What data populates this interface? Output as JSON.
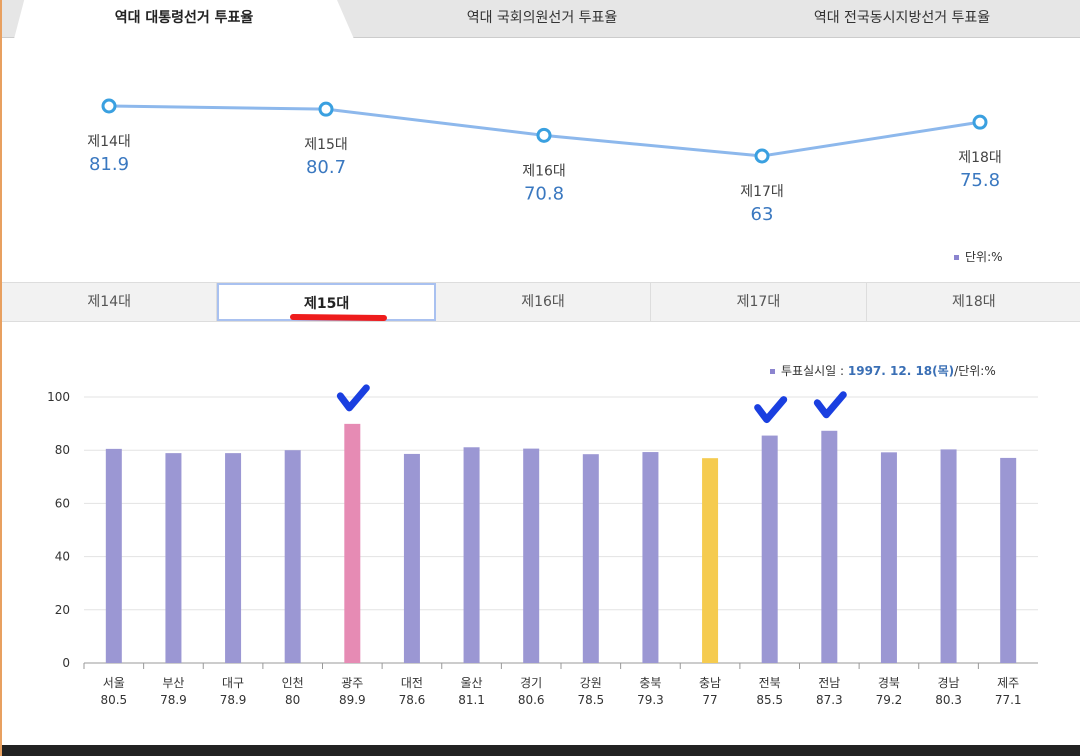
{
  "top_tabs": [
    "역대 대통령선거 투표율",
    "역대 국회의원선거 투표율",
    "역대 전국동시지방선거 투표율"
  ],
  "active_top_tab": 0,
  "trend": {
    "unit_label": "단위:%",
    "labels": [
      "제14대",
      "제15대",
      "제16대",
      "제17대",
      "제18대"
    ],
    "values": [
      81.9,
      80.7,
      70.8,
      63,
      75.8
    ],
    "value_labels": [
      "81.9",
      "80.7",
      "70.8",
      "63",
      "75.8"
    ],
    "line_color": "#8db8ec",
    "marker_color": "#3aa0e0",
    "value_color": "#3a78c0"
  },
  "sub_tabs": [
    "제14대",
    "제15대",
    "제16대",
    "제17대",
    "제18대"
  ],
  "active_sub_tab": 1,
  "chart_meta": {
    "date_prefix": "투표실시일 : ",
    "date": "1997. 12. 18(목)",
    "unit": "/단위:%"
  },
  "chart_data": {
    "type": "bar",
    "categories": [
      "서울",
      "부산",
      "대구",
      "인천",
      "광주",
      "대전",
      "울산",
      "경기",
      "강원",
      "충북",
      "충남",
      "전북",
      "전남",
      "경북",
      "경남",
      "제주"
    ],
    "values": [
      80.5,
      78.9,
      78.9,
      80,
      89.9,
      78.6,
      81.1,
      80.6,
      78.5,
      79.3,
      77,
      85.5,
      87.3,
      79.2,
      80.3,
      77.1
    ],
    "value_labels": [
      "80.5",
      "78.9",
      "78.9",
      "80",
      "89.9",
      "78.6",
      "81.1",
      "80.6",
      "78.5",
      "79.3",
      "77",
      "85.5",
      "87.3",
      "79.2",
      "80.3",
      "77.1"
    ],
    "ylim": [
      0,
      100
    ],
    "yticks": [
      "0",
      "20",
      "40",
      "60",
      "80",
      "100"
    ],
    "grid": true,
    "colors": {
      "default": "#9b97d3",
      "광주": "#e68bb4",
      "충남": "#f5cb4f"
    }
  },
  "annotations": {
    "checkmarks": [
      "광주",
      "전북",
      "전남"
    ],
    "check_color": "#1a3fe0",
    "underline_color": "#ee1c1c"
  }
}
